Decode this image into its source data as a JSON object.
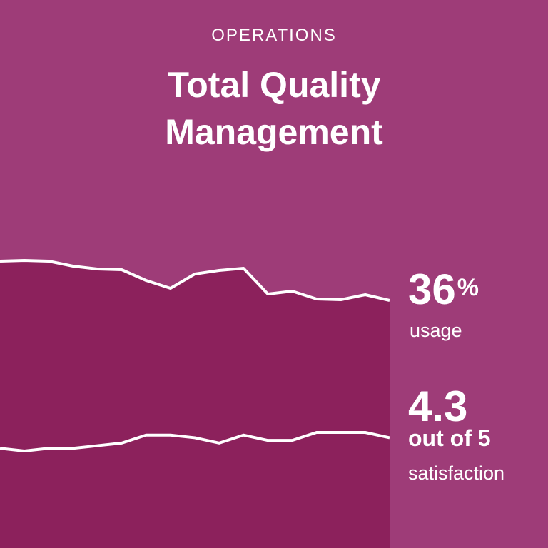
{
  "header": {
    "kicker": "OPERATIONS",
    "title_line1": "Total Quality",
    "title_line2": "Management"
  },
  "stats": {
    "usage_value": "36",
    "usage_unit": "%",
    "usage_label": "usage",
    "satisfaction_value": "4.3",
    "satisfaction_scale": "out of 5",
    "satisfaction_label": "satisfaction"
  },
  "colors": {
    "background": "#9e3c78",
    "area": "#8c215c",
    "line": "#ffffff"
  },
  "chart_data": {
    "type": "line",
    "series": [
      {
        "values": [
          47,
          47.2,
          47,
          45.6,
          44.8,
          44.6,
          41.6,
          39.4,
          43.4,
          44.4,
          45,
          37.8,
          38.6,
          36.4,
          36.2,
          37.6,
          36
        ]
      },
      {
        "values": [
          4.28,
          4.275,
          4.28,
          4.28,
          4.285,
          4.29,
          4.305,
          4.305,
          4.3,
          4.29,
          4.305,
          4.295,
          4.295,
          4.31,
          4.31,
          4.31,
          4.3
        ]
      }
    ]
  }
}
